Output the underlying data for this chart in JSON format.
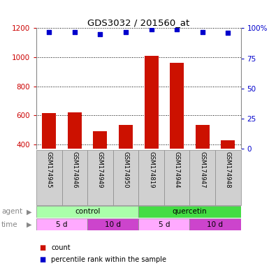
{
  "title": "GDS3032 / 201560_at",
  "samples": [
    "GSM174945",
    "GSM174946",
    "GSM174949",
    "GSM174950",
    "GSM174819",
    "GSM174944",
    "GSM174947",
    "GSM174948"
  ],
  "counts": [
    615,
    620,
    490,
    535,
    1010,
    960,
    535,
    430
  ],
  "percentile_ranks": [
    97,
    97,
    95,
    97,
    99,
    99,
    97,
    96
  ],
  "ylim_left": [
    370,
    1200
  ],
  "ylim_right": [
    0,
    100
  ],
  "yticks_left": [
    400,
    600,
    800,
    1000,
    1200
  ],
  "yticks_right": [
    0,
    25,
    50,
    75,
    100
  ],
  "bar_color": "#cc1100",
  "scatter_color": "#0000cc",
  "agent_groups": [
    {
      "label": "control",
      "start": 0,
      "end": 4,
      "color": "#aaffaa"
    },
    {
      "label": "quercetin",
      "start": 4,
      "end": 8,
      "color": "#44dd44"
    }
  ],
  "time_groups": [
    {
      "label": "5 d",
      "start": 0,
      "end": 2,
      "color": "#ffaaff"
    },
    {
      "label": "10 d",
      "start": 2,
      "end": 4,
      "color": "#cc44cc"
    },
    {
      "label": "5 d",
      "start": 4,
      "end": 6,
      "color": "#ffaaff"
    },
    {
      "label": "10 d",
      "start": 6,
      "end": 8,
      "color": "#cc44cc"
    }
  ],
  "label_count": "count",
  "label_percentile": "percentile rank within the sample",
  "left_tick_color": "#cc0000",
  "right_tick_color": "#0000cc",
  "sample_bg_color": "#d0d0d0",
  "sample_edge_color": "#888888"
}
